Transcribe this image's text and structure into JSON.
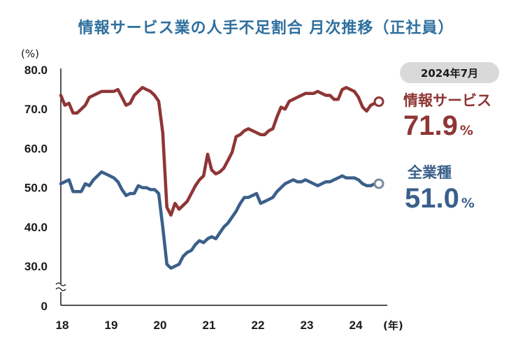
{
  "title": "情報サービス業の人手不足割合 月次推移（正社員）",
  "colors": {
    "title": "#2e6f9e",
    "info": "#8f3535",
    "all": "#3a5f8a",
    "badge": "#d9d9d9",
    "axis": "#1a1a1a"
  },
  "chart_data": {
    "type": "line",
    "title": "情報サービス業の人手不足割合 月次推移（正社員）",
    "ylabel": "(%)",
    "xlabel": "(年)",
    "ylim": [
      25,
      80
    ],
    "y_ticks": [
      "80.0",
      "70.0",
      "60.0",
      "50.0",
      "40.0",
      "30.0"
    ],
    "y_tick_values": [
      80,
      70,
      60,
      50,
      40,
      30
    ],
    "y_zero_label": "0",
    "x_range": [
      2018,
      2024.6
    ],
    "x_ticks": [
      "18",
      "19",
      "20",
      "21",
      "22",
      "23",
      "24"
    ],
    "x_tick_values": [
      2018,
      2019,
      2020,
      2021,
      2022,
      2023,
      2024
    ],
    "badge": "2024年7月",
    "series": [
      {
        "name": "情報サービス",
        "latest": "71.9",
        "unit": "%",
        "x": [
          2018.0,
          2018.083,
          2018.167,
          2018.25,
          2018.333,
          2018.417,
          2018.5,
          2018.583,
          2018.667,
          2018.75,
          2018.833,
          2018.917,
          2019.0,
          2019.083,
          2019.167,
          2019.25,
          2019.333,
          2019.417,
          2019.5,
          2019.583,
          2019.667,
          2019.75,
          2019.833,
          2019.917,
          2020.0,
          2020.083,
          2020.167,
          2020.25,
          2020.333,
          2020.417,
          2020.5,
          2020.583,
          2020.667,
          2020.75,
          2020.833,
          2020.917,
          2021.0,
          2021.083,
          2021.167,
          2021.25,
          2021.333,
          2021.417,
          2021.5,
          2021.583,
          2021.667,
          2021.75,
          2021.833,
          2021.917,
          2022.0,
          2022.083,
          2022.167,
          2022.25,
          2022.333,
          2022.417,
          2022.5,
          2022.583,
          2022.667,
          2022.75,
          2022.833,
          2022.917,
          2023.0,
          2023.083,
          2023.167,
          2023.25,
          2023.333,
          2023.417,
          2023.5,
          2023.583,
          2023.667,
          2023.75,
          2023.833,
          2023.917,
          2024.0,
          2024.083,
          2024.167,
          2024.25,
          2024.333,
          2024.417,
          2024.5
        ],
        "values": [
          73.5,
          71.0,
          71.5,
          69.0,
          69.0,
          70.0,
          71.0,
          73.0,
          73.5,
          74.0,
          74.5,
          74.5,
          74.5,
          74.5,
          75.0,
          73.0,
          71.0,
          71.5,
          73.5,
          74.5,
          75.5,
          75.0,
          74.5,
          73.5,
          72.0,
          64.0,
          45.0,
          43.0,
          46.0,
          44.5,
          45.5,
          46.5,
          48.5,
          50.5,
          52.0,
          53.0,
          58.5,
          54.5,
          53.5,
          54.0,
          55.0,
          57.0,
          59.0,
          63.0,
          63.5,
          64.5,
          65.0,
          64.5,
          64.0,
          63.5,
          63.5,
          64.5,
          65.0,
          68.0,
          70.5,
          70.0,
          72.0,
          72.5,
          73.0,
          73.5,
          74.0,
          74.0,
          74.0,
          74.5,
          74.0,
          73.5,
          73.5,
          72.5,
          72.5,
          75.0,
          75.5,
          75.0,
          74.5,
          73.0,
          70.5,
          69.5,
          71.0,
          71.5,
          71.9
        ]
      },
      {
        "name": "全業種",
        "latest": "51.0",
        "unit": "%",
        "x": [
          2018.0,
          2018.083,
          2018.167,
          2018.25,
          2018.333,
          2018.417,
          2018.5,
          2018.583,
          2018.667,
          2018.75,
          2018.833,
          2018.917,
          2019.0,
          2019.083,
          2019.167,
          2019.25,
          2019.333,
          2019.417,
          2019.5,
          2019.583,
          2019.667,
          2019.75,
          2019.833,
          2019.917,
          2020.0,
          2020.083,
          2020.167,
          2020.25,
          2020.333,
          2020.417,
          2020.5,
          2020.583,
          2020.667,
          2020.75,
          2020.833,
          2020.917,
          2021.0,
          2021.083,
          2021.167,
          2021.25,
          2021.333,
          2021.417,
          2021.5,
          2021.583,
          2021.667,
          2021.75,
          2021.833,
          2021.917,
          2022.0,
          2022.083,
          2022.167,
          2022.25,
          2022.333,
          2022.417,
          2022.5,
          2022.583,
          2022.667,
          2022.75,
          2022.833,
          2022.917,
          2023.0,
          2023.083,
          2023.167,
          2023.25,
          2023.333,
          2023.417,
          2023.5,
          2023.583,
          2023.667,
          2023.75,
          2023.833,
          2023.917,
          2024.0,
          2024.083,
          2024.167,
          2024.25,
          2024.333,
          2024.417,
          2024.5
        ],
        "values": [
          51.0,
          51.5,
          52.0,
          49.0,
          49.0,
          49.0,
          51.0,
          50.5,
          52.0,
          53.0,
          54.0,
          53.5,
          53.0,
          52.5,
          51.5,
          49.5,
          48.0,
          48.5,
          48.5,
          50.5,
          50.0,
          50.0,
          49.5,
          49.5,
          48.5,
          40.0,
          30.5,
          29.5,
          30.0,
          30.5,
          32.5,
          33.5,
          34.0,
          35.5,
          36.5,
          36.0,
          37.0,
          37.5,
          37.0,
          38.5,
          40.0,
          41.0,
          42.5,
          44.0,
          46.0,
          47.5,
          47.5,
          48.0,
          48.5,
          46.0,
          46.5,
          47.0,
          47.5,
          49.0,
          50.0,
          51.0,
          51.5,
          52.0,
          51.5,
          51.5,
          52.0,
          51.5,
          51.0,
          50.5,
          51.0,
          51.5,
          51.5,
          52.0,
          52.5,
          53.0,
          52.5,
          52.5,
          52.5,
          52.0,
          51.0,
          50.5,
          50.5,
          51.0,
          51.0
        ]
      }
    ]
  }
}
